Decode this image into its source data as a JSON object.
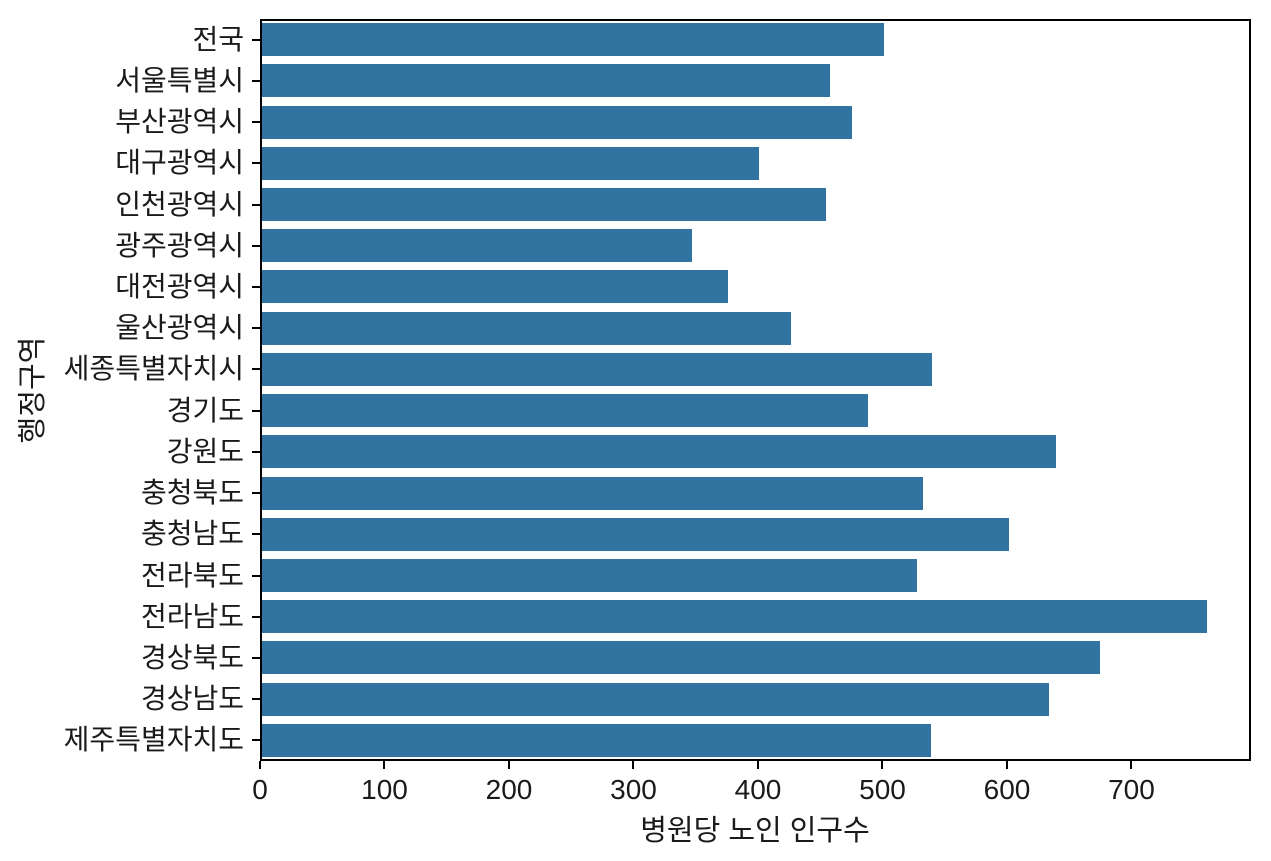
{
  "chart_data": {
    "type": "bar",
    "orientation": "horizontal",
    "title": "",
    "xlabel": "병원당 노인 인구수",
    "ylabel": "행정구역",
    "categories": [
      "전국",
      "서울특별시",
      "부산광역시",
      "대구광역시",
      "인천광역시",
      "광주광역시",
      "대전광역시",
      "울산광역시",
      "세종특별자치시",
      "경기도",
      "강원도",
      "충청북도",
      "충청남도",
      "전라북도",
      "전라남도",
      "경상북도",
      "경상남도",
      "제주특별자치도"
    ],
    "values": [
      500,
      456,
      474,
      399,
      453,
      345,
      374,
      425,
      538,
      487,
      638,
      531,
      600,
      526,
      759,
      673,
      632,
      537
    ],
    "xticks": [
      0,
      100,
      200,
      300,
      400,
      500,
      600,
      700
    ],
    "xlim": [
      0,
      796
    ],
    "grid": false,
    "legend": null,
    "bar_color": "#3274a1",
    "spine_color": "#000000",
    "text_color": "#1a1a1a",
    "background_color": "#ffffff"
  }
}
